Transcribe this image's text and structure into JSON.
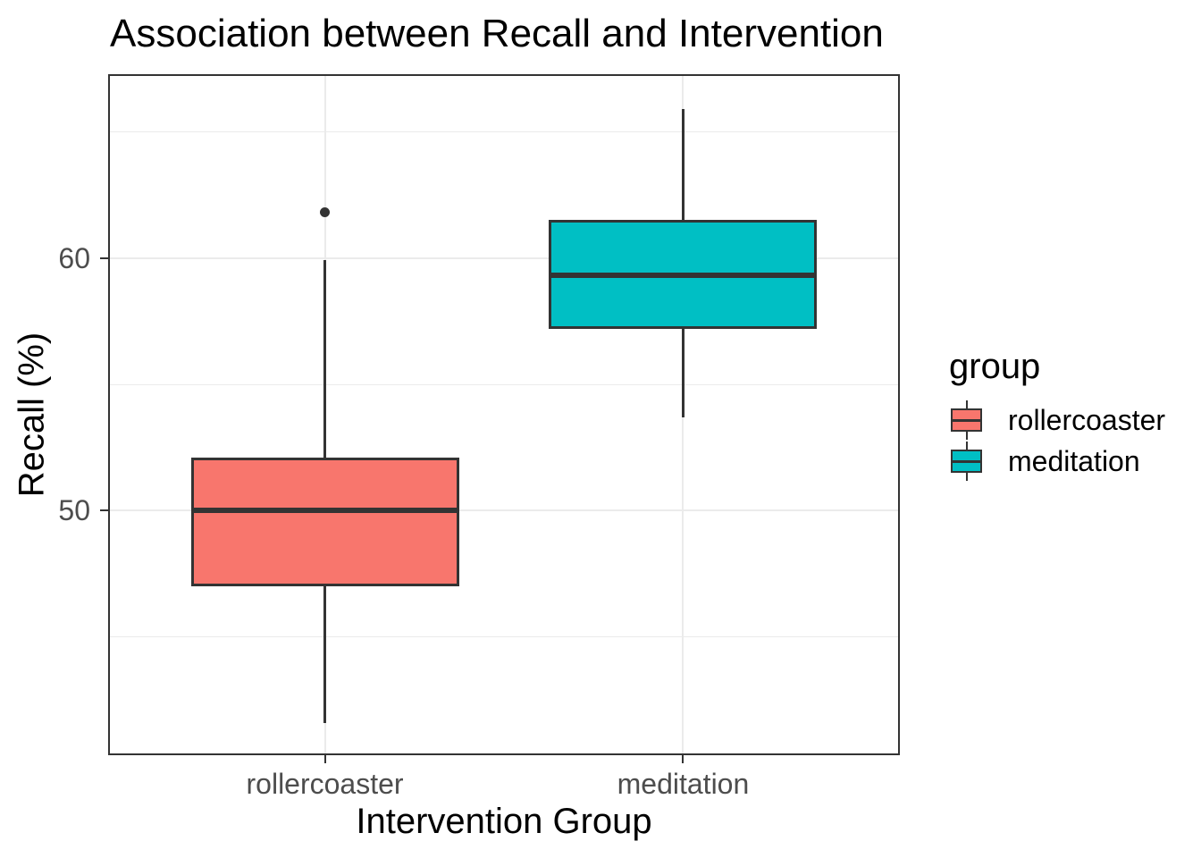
{
  "title": "Association between Recall and Intervention",
  "chart_data": {
    "type": "boxplot",
    "title": "Association between Recall and Intervention",
    "xlabel": "Intervention Group",
    "ylabel": "Recall (%)",
    "categories": [
      "rollercoaster",
      "meditation"
    ],
    "series": [
      {
        "name": "rollercoaster",
        "color": "#F8766D",
        "whisker_low": 41.6,
        "q1": 47.0,
        "median": 50.0,
        "q3": 52.1,
        "whisker_high": 59.9,
        "outliers": [
          61.8
        ]
      },
      {
        "name": "meditation",
        "color": "#00BFC4",
        "whisker_low": 53.7,
        "q1": 57.2,
        "median": 59.3,
        "q3": 61.5,
        "whisker_high": 65.9,
        "outliers": []
      }
    ],
    "y_ticks": [
      50,
      60
    ],
    "y_minor_gridlines": [
      45,
      55,
      65
    ],
    "ylim": [
      40.4,
      67.2
    ],
    "grid": true,
    "legend": {
      "title": "group",
      "position": "right",
      "entries": [
        "rollercoaster",
        "meditation"
      ]
    },
    "colors": {
      "outline": "#333333",
      "grid": "#EBEBEB",
      "axis_text": "#4D4D4D",
      "title_text": "#000000"
    }
  }
}
